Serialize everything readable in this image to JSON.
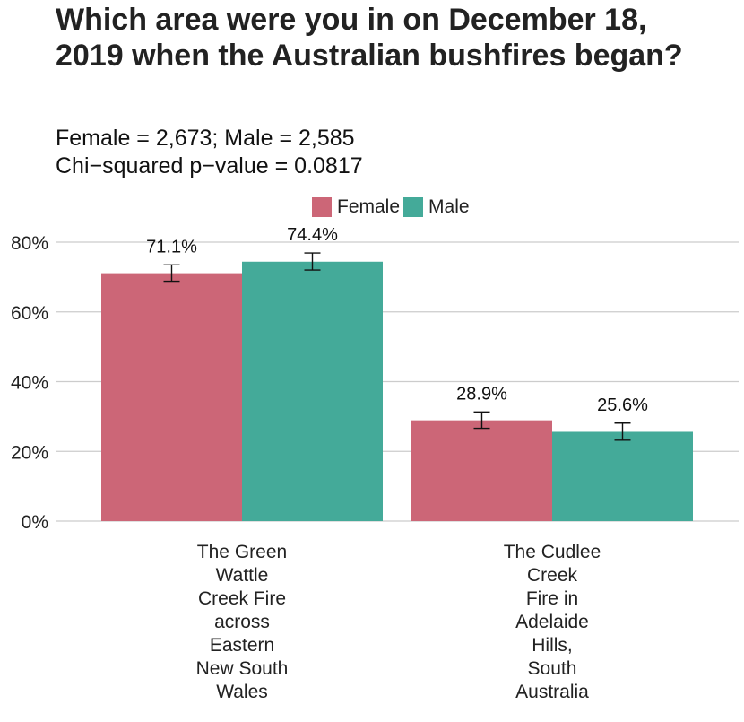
{
  "chart_data": {
    "type": "bar",
    "title": "Which area were you in on December 18, 2019 when the Australian bushfires began?",
    "subtitle_lines": [
      "Female = 2,673; Male = 2,585",
      "Chi−squared p−value = 0.0817"
    ],
    "categories": [
      "The Green\nWattle\nCreek Fire\nacross\nEastern\nNew South\nWales",
      "The Cudlee\nCreek\nFire in\nAdelaide\nHills,\nSouth\nAustralia"
    ],
    "series": [
      {
        "name": "Female",
        "color": "#CC6677",
        "values": [
          71.1,
          28.9
        ],
        "labels": [
          "71.1%",
          "28.9%"
        ],
        "error_low": [
          68.8,
          26.6
        ],
        "error_high": [
          73.5,
          31.3
        ]
      },
      {
        "name": "Male",
        "color": "#44AA99",
        "values": [
          74.4,
          25.6
        ],
        "labels": [
          "74.4%",
          "25.6%"
        ],
        "error_low": [
          72.0,
          23.2
        ],
        "error_high": [
          76.9,
          28.1
        ]
      }
    ],
    "ylim": [
      0,
      80
    ],
    "yticks": [
      0,
      20,
      40,
      60,
      80
    ],
    "ytick_labels": [
      "0%",
      "20%",
      "40%",
      "60%",
      "80%"
    ],
    "grid": "horizontal",
    "legend_position": "top"
  }
}
